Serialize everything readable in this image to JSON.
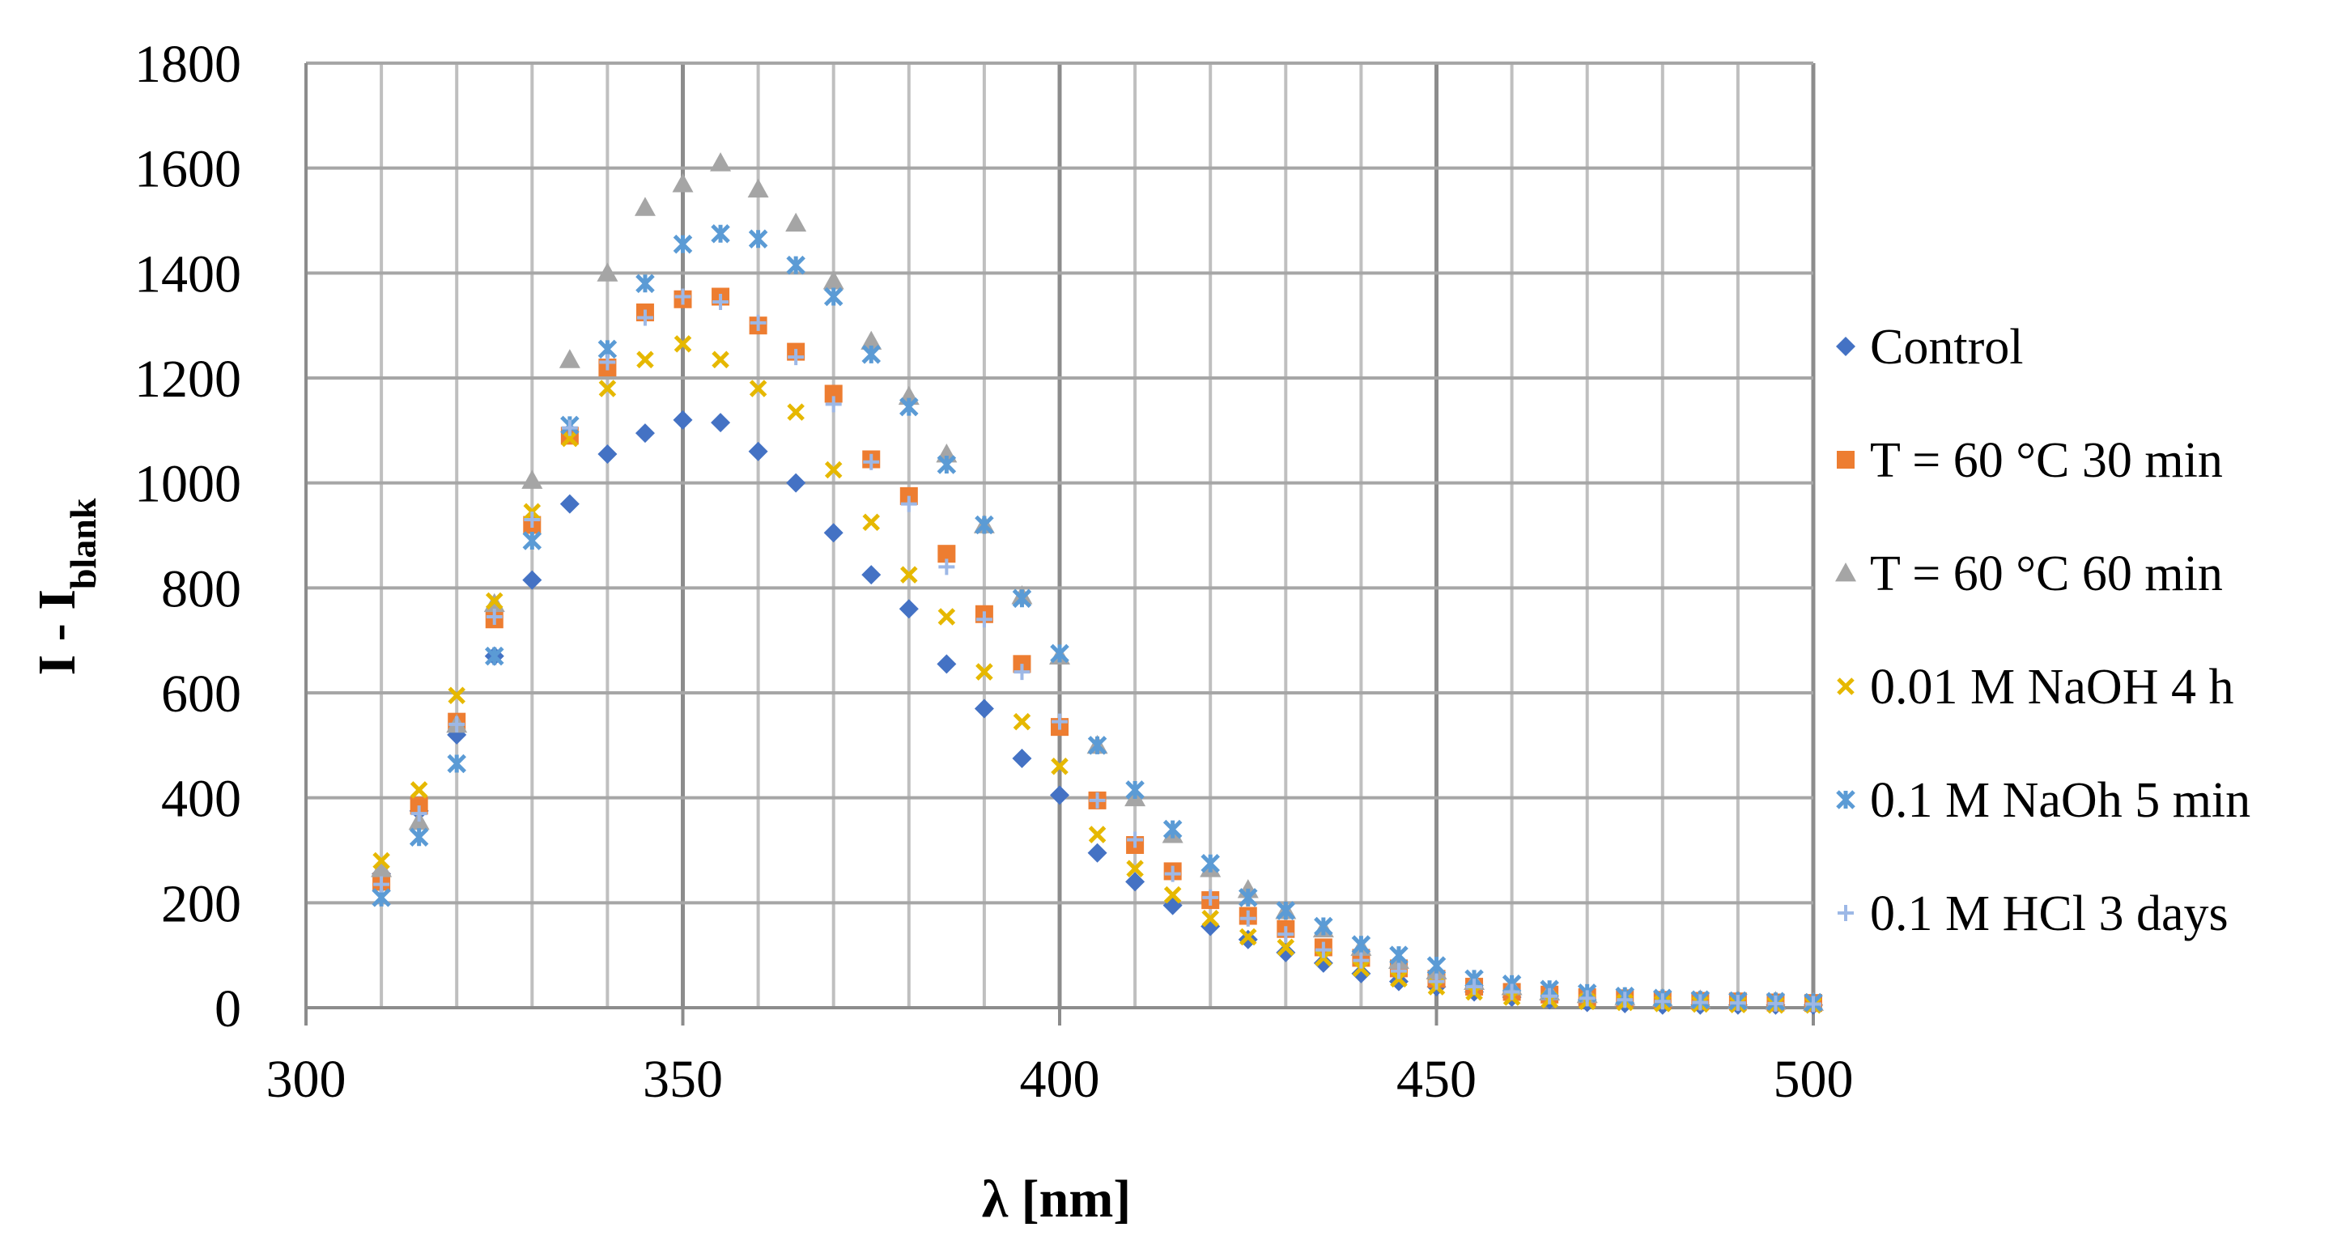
{
  "chart_data": {
    "type": "scatter",
    "xlabel": "λ [nm]",
    "ylabel": {
      "main": "I - I",
      "subscript": "blank"
    },
    "xlim": [
      300,
      500
    ],
    "ylim": [
      0,
      1800
    ],
    "xticks": [
      300,
      350,
      400,
      450,
      500
    ],
    "yticks": [
      0,
      200,
      400,
      600,
      800,
      1000,
      1200,
      1400,
      1600,
      1800
    ],
    "grid": true,
    "legend_position": "right",
    "x": [
      310,
      315,
      320,
      325,
      330,
      335,
      340,
      345,
      350,
      355,
      360,
      365,
      370,
      375,
      380,
      385,
      390,
      395,
      400,
      405,
      410,
      415,
      420,
      425,
      430,
      435,
      440,
      445,
      450,
      455,
      460,
      465,
      470,
      475,
      480,
      485,
      490,
      495,
      500
    ],
    "series": [
      {
        "name": "Control",
        "marker": "diamond",
        "color": "#4472C4",
        "values": [
          255,
          375,
          520,
          670,
          815,
          960,
          1055,
          1095,
          1120,
          1115,
          1060,
          1000,
          905,
          825,
          760,
          655,
          570,
          475,
          405,
          295,
          240,
          195,
          155,
          130,
          105,
          85,
          65,
          50,
          40,
          30,
          20,
          15,
          10,
          8,
          5,
          5,
          5,
          5,
          5
        ]
      },
      {
        "name": "T = 60 °C 30 min",
        "marker": "square",
        "color": "#ED7D31",
        "values": [
          240,
          385,
          545,
          740,
          920,
          1090,
          1220,
          1325,
          1350,
          1355,
          1300,
          1250,
          1170,
          1045,
          975,
          865,
          750,
          655,
          535,
          395,
          310,
          260,
          205,
          175,
          150,
          115,
          95,
          75,
          55,
          40,
          30,
          25,
          20,
          18,
          15,
          13,
          12,
          10,
          9
        ]
      },
      {
        "name": "T = 60 °C 60 min",
        "marker": "triangle",
        "color": "#A5A5A5",
        "values": [
          265,
          355,
          540,
          770,
          1005,
          1235,
          1400,
          1525,
          1570,
          1610,
          1560,
          1495,
          1385,
          1270,
          1165,
          1055,
          920,
          785,
          670,
          500,
          400,
          330,
          265,
          225,
          185,
          150,
          115,
          90,
          70,
          50,
          40,
          30,
          25,
          20,
          18,
          15,
          13,
          12,
          10
        ]
      },
      {
        "name": "0.01 M NaOH 4 h",
        "marker": "x",
        "color": "#E6B800",
        "values": [
          280,
          415,
          595,
          775,
          945,
          1085,
          1180,
          1235,
          1265,
          1235,
          1180,
          1135,
          1025,
          925,
          825,
          745,
          640,
          545,
          460,
          330,
          265,
          215,
          170,
          135,
          115,
          95,
          75,
          55,
          40,
          30,
          20,
          15,
          12,
          10,
          8,
          7,
          6,
          5,
          5
        ]
      },
      {
        "name": "0.1 M NaOh 5 min",
        "marker": "star",
        "color": "#5B9BD5",
        "values": [
          210,
          325,
          465,
          670,
          890,
          1110,
          1255,
          1380,
          1455,
          1475,
          1465,
          1415,
          1355,
          1245,
          1145,
          1035,
          920,
          780,
          675,
          500,
          415,
          340,
          275,
          210,
          185,
          155,
          120,
          100,
          80,
          55,
          45,
          35,
          28,
          22,
          18,
          15,
          13,
          12,
          10
        ]
      },
      {
        "name": "0.1 M HCl 3 days",
        "marker": "plus",
        "color": "#9DB8E6",
        "values": [
          235,
          370,
          540,
          745,
          930,
          1105,
          1230,
          1315,
          1355,
          1345,
          1305,
          1240,
          1150,
          1040,
          960,
          840,
          740,
          640,
          545,
          395,
          320,
          255,
          210,
          170,
          140,
          110,
          90,
          70,
          50,
          40,
          30,
          22,
          18,
          15,
          12,
          10,
          9,
          8,
          7
        ]
      }
    ]
  }
}
